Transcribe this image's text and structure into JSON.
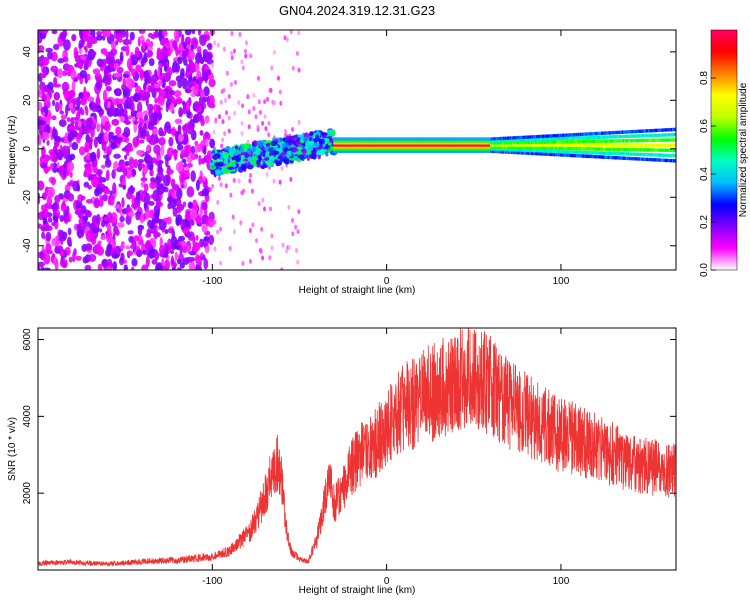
{
  "title": "GN04.2024.319.12.31.G23",
  "chart_data": [
    {
      "type": "heatmap",
      "xlabel": "Height of straight line (km)",
      "ylabel": "Frequency (Hz)",
      "xlim": [
        -200,
        166
      ],
      "ylim": [
        -50,
        49
      ],
      "x_ticks": [
        -100,
        0,
        100
      ],
      "y_ticks": [
        -40,
        -20,
        0,
        20,
        40
      ],
      "colorbar": {
        "label": "Normalized spectral amplitude",
        "range": [
          0,
          1
        ],
        "ticks": [
          "0.0",
          "0.2",
          "0.4",
          "0.6",
          "0.8"
        ],
        "colors": [
          "#ffffff",
          "#ff00ff",
          "#8000ff",
          "#0000ff",
          "#00c0ff",
          "#00ffc0",
          "#00ff00",
          "#c0ff00",
          "#ffff00",
          "#ff8000",
          "#ff0000",
          "#ff0060"
        ]
      },
      "regions": [
        {
          "x": [
            -200,
            -100
          ],
          "freq": [
            -50,
            49
          ],
          "amplitude": "0.1-0.2",
          "note": "scattered noise"
        },
        {
          "x": [
            -100,
            -30
          ],
          "freq": [
            -10,
            12
          ],
          "amplitude": "0.2-0.5",
          "note": "rising signal trace"
        },
        {
          "x": [
            -30,
            60
          ],
          "freq": [
            0,
            3
          ],
          "amplitude": "0.9-1.0",
          "note": "narrow peak"
        },
        {
          "x": [
            60,
            166
          ],
          "freq": [
            -3,
            5
          ],
          "amplitude": "0.3-0.6",
          "note": "band widening"
        }
      ]
    },
    {
      "type": "line",
      "xlabel": "Height of straight line (km)",
      "ylabel": "SNR (10 * v/v)",
      "xlim": [
        -200,
        166
      ],
      "ylim": [
        0,
        6300
      ],
      "x_ticks": [
        -100,
        0,
        100
      ],
      "y_ticks": [
        2000,
        4000,
        6000
      ],
      "series": [
        {
          "color": "#ee3333",
          "x": [
            -200,
            -180,
            -160,
            -140,
            -120,
            -100,
            -90,
            -85,
            -80,
            -75,
            -70,
            -65,
            -62,
            -60,
            -58,
            -55,
            -50,
            -45,
            -40,
            -35,
            -32,
            -30,
            -25,
            -20,
            -15,
            -10,
            -5,
            0,
            10,
            20,
            30,
            40,
            45,
            50,
            55,
            60,
            70,
            80,
            90,
            100,
            110,
            120,
            130,
            140,
            150,
            160,
            166
          ],
          "y": [
            180,
            200,
            160,
            220,
            260,
            350,
            500,
            700,
            900,
            1300,
            1900,
            2600,
            2800,
            2300,
            1200,
            500,
            280,
            220,
            800,
            1900,
            2300,
            1700,
            2100,
            2700,
            3000,
            3100,
            3400,
            3700,
            4200,
            4500,
            4700,
            4900,
            5000,
            5050,
            5000,
            4750,
            4300,
            4050,
            3750,
            3500,
            3400,
            3200,
            3000,
            2800,
            2700,
            2600,
            2650
          ]
        }
      ]
    }
  ]
}
